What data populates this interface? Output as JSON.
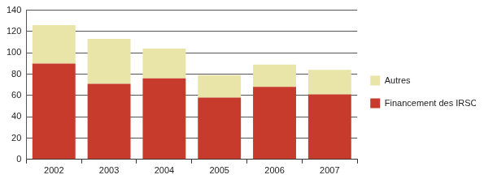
{
  "chart_data": {
    "type": "bar",
    "stacked": true,
    "categories": [
      "2002",
      "2003",
      "2004",
      "2005",
      "2006",
      "2007"
    ],
    "series": [
      {
        "name": "Financement des IRSC",
        "color": "#c63b2b",
        "values": [
          90,
          71,
          76,
          58,
          68,
          61
        ]
      },
      {
        "name": "Autres",
        "color": "#e9e4a8",
        "values": [
          36,
          42,
          28,
          21,
          21,
          23
        ]
      }
    ],
    "ylim": [
      0,
      140
    ],
    "yticks": [
      0,
      20,
      40,
      60,
      80,
      100,
      120,
      140
    ],
    "grid": true,
    "legend": "right"
  }
}
